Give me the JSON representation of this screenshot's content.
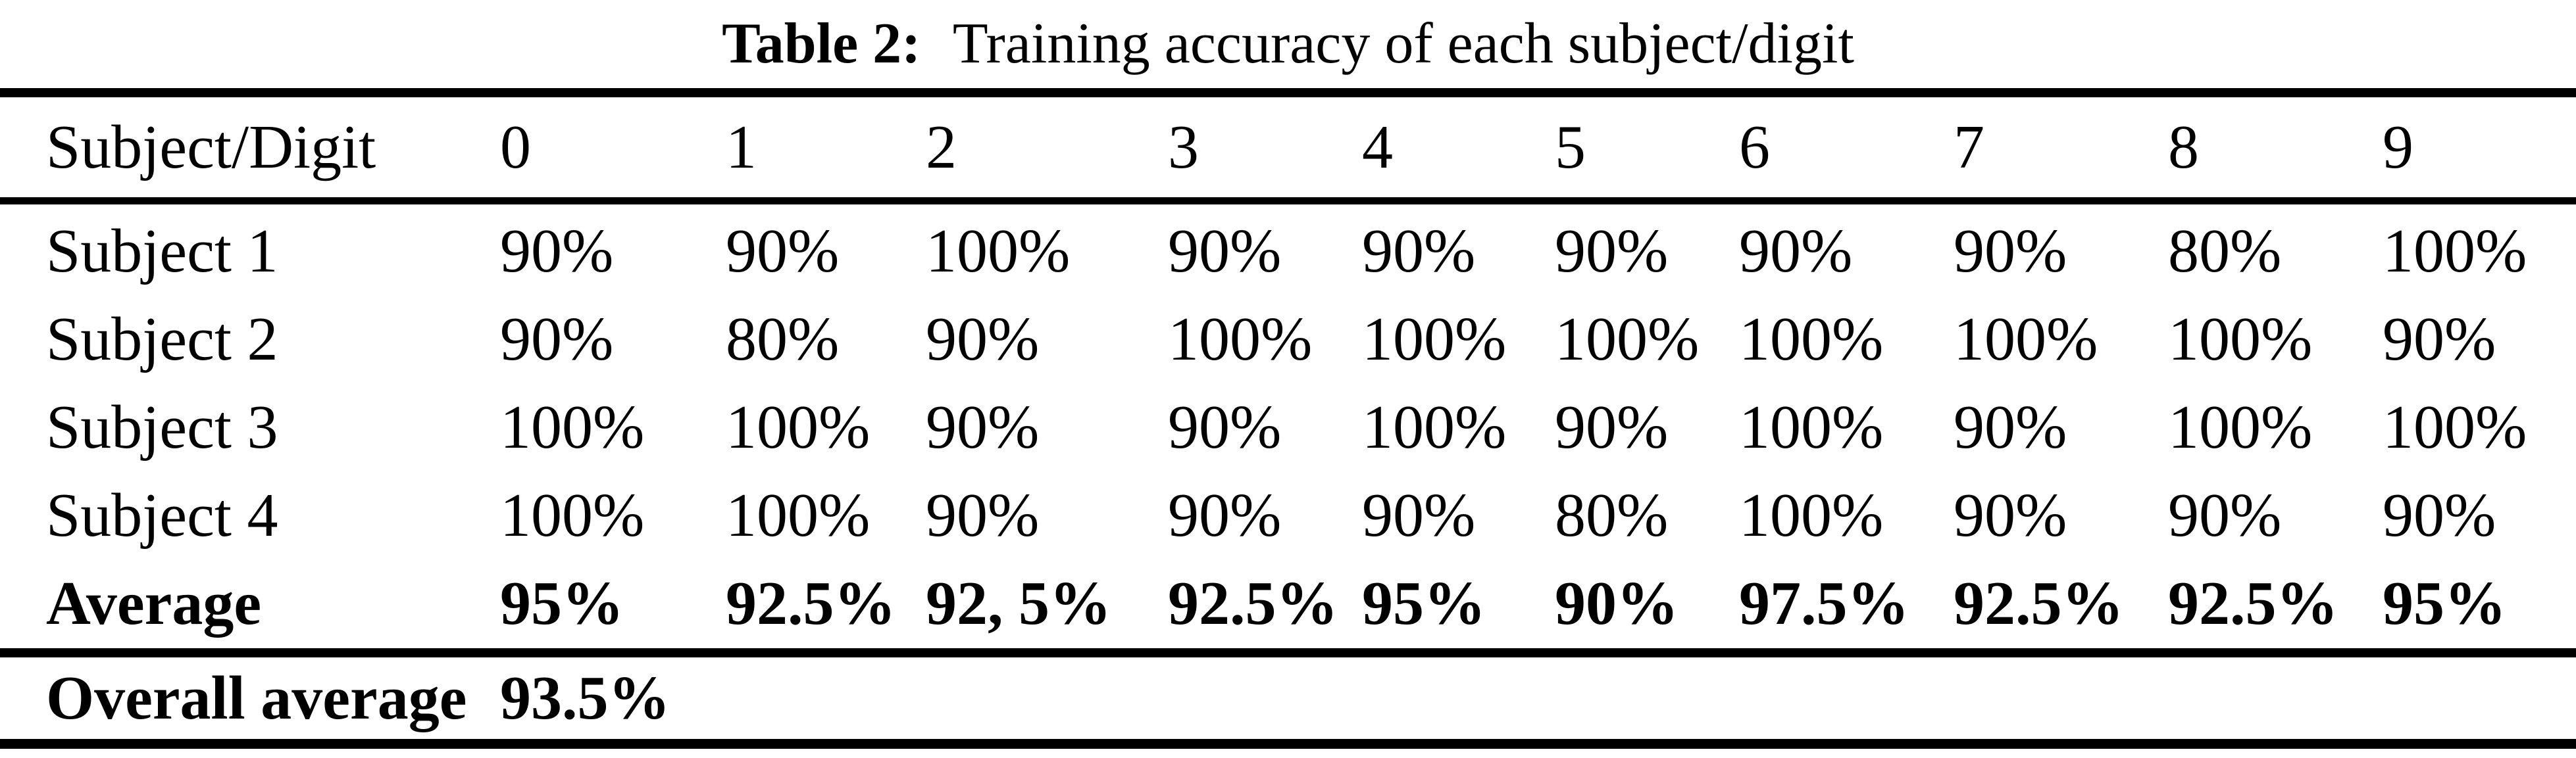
{
  "page": {
    "background_color": "#ffffff",
    "text_color": "#000000",
    "rule_color": "#000000"
  },
  "caption": {
    "label": "Table 2:",
    "text": "Training accuracy of each subject/digit"
  },
  "table": {
    "header": [
      "Subject/Digit",
      "0",
      "1",
      "2",
      "3",
      "4",
      "5",
      "6",
      "7",
      "8",
      "9"
    ],
    "rows": [
      {
        "label": "Subject 1",
        "bold": false,
        "values": [
          "90%",
          "90%",
          "100%",
          "90%",
          "90%",
          "90%",
          "90%",
          "90%",
          "80%",
          "100%"
        ]
      },
      {
        "label": "Subject 2",
        "bold": false,
        "values": [
          "90%",
          "80%",
          "90%",
          "100%",
          "100%",
          "100%",
          "100%",
          "100%",
          "100%",
          "90%"
        ]
      },
      {
        "label": "Subject 3",
        "bold": false,
        "values": [
          "100%",
          "100%",
          "90%",
          "90%",
          "100%",
          "90%",
          "100%",
          "90%",
          "100%",
          "100%"
        ]
      },
      {
        "label": "Subject 4",
        "bold": false,
        "values": [
          "100%",
          "100%",
          "90%",
          "90%",
          "90%",
          "80%",
          "100%",
          "90%",
          "90%",
          "90%"
        ]
      },
      {
        "label": "Average",
        "bold": true,
        "values": [
          "95%",
          "92.5%",
          "92, 5%",
          "92.5%",
          "95%",
          "90%",
          "97.5%",
          "92.5%",
          "92.5%",
          "95%"
        ]
      }
    ],
    "footer": {
      "label": "Overall average",
      "value": "93.5%"
    }
  },
  "chart_data": {
    "type": "table",
    "title": "Table 2: Training accuracy of each subject/digit",
    "columns": [
      "Subject/Digit",
      "0",
      "1",
      "2",
      "3",
      "4",
      "5",
      "6",
      "7",
      "8",
      "9"
    ],
    "rows": [
      [
        "Subject 1",
        "90%",
        "90%",
        "100%",
        "90%",
        "90%",
        "90%",
        "90%",
        "90%",
        "80%",
        "100%"
      ],
      [
        "Subject 2",
        "90%",
        "80%",
        "90%",
        "100%",
        "100%",
        "100%",
        "100%",
        "100%",
        "100%",
        "90%"
      ],
      [
        "Subject 3",
        "100%",
        "100%",
        "90%",
        "90%",
        "100%",
        "90%",
        "100%",
        "90%",
        "100%",
        "100%"
      ],
      [
        "Subject 4",
        "100%",
        "100%",
        "90%",
        "90%",
        "90%",
        "80%",
        "100%",
        "90%",
        "90%",
        "90%"
      ],
      [
        "Average",
        "95%",
        "92.5%",
        "92, 5%",
        "92.5%",
        "95%",
        "90%",
        "97.5%",
        "92.5%",
        "92.5%",
        "95%"
      ],
      [
        "Overall average",
        "93.5%"
      ]
    ]
  }
}
